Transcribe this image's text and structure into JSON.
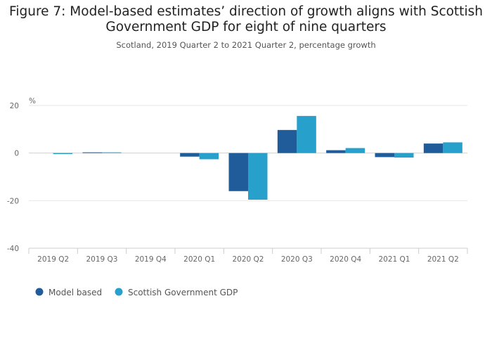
{
  "chart_data": {
    "type": "bar",
    "title": "Figure 7: Model-based estimates’ direction of growth aligns with Scottish Government GDP for eight of nine quarters",
    "subtitle": "Scotland, 2019 Quarter 2 to 2021 Quarter 2, percentage growth",
    "ylabel": "%",
    "xlabel": "",
    "ylim": [
      -40,
      20
    ],
    "yticks": [
      20,
      0,
      -20,
      -40
    ],
    "categories": [
      "2019 Q2",
      "2019 Q3",
      "2019 Q4",
      "2020 Q1",
      "2020 Q2",
      "2020 Q3",
      "2020 Q4",
      "2021 Q1",
      "2021 Q2"
    ],
    "series": [
      {
        "name": "Model based",
        "color": "#1f5c99",
        "values": [
          0.0,
          0.3,
          0.0,
          -1.5,
          -16.0,
          9.7,
          1.2,
          -1.7,
          4.0
        ]
      },
      {
        "name": "Scottish Government GDP",
        "color": "#27a0cc",
        "values": [
          -0.4,
          0.3,
          0.0,
          -2.6,
          -19.6,
          15.6,
          2.1,
          -1.9,
          4.5
        ]
      }
    ],
    "grid": true,
    "legend_position": "bottom-left"
  }
}
